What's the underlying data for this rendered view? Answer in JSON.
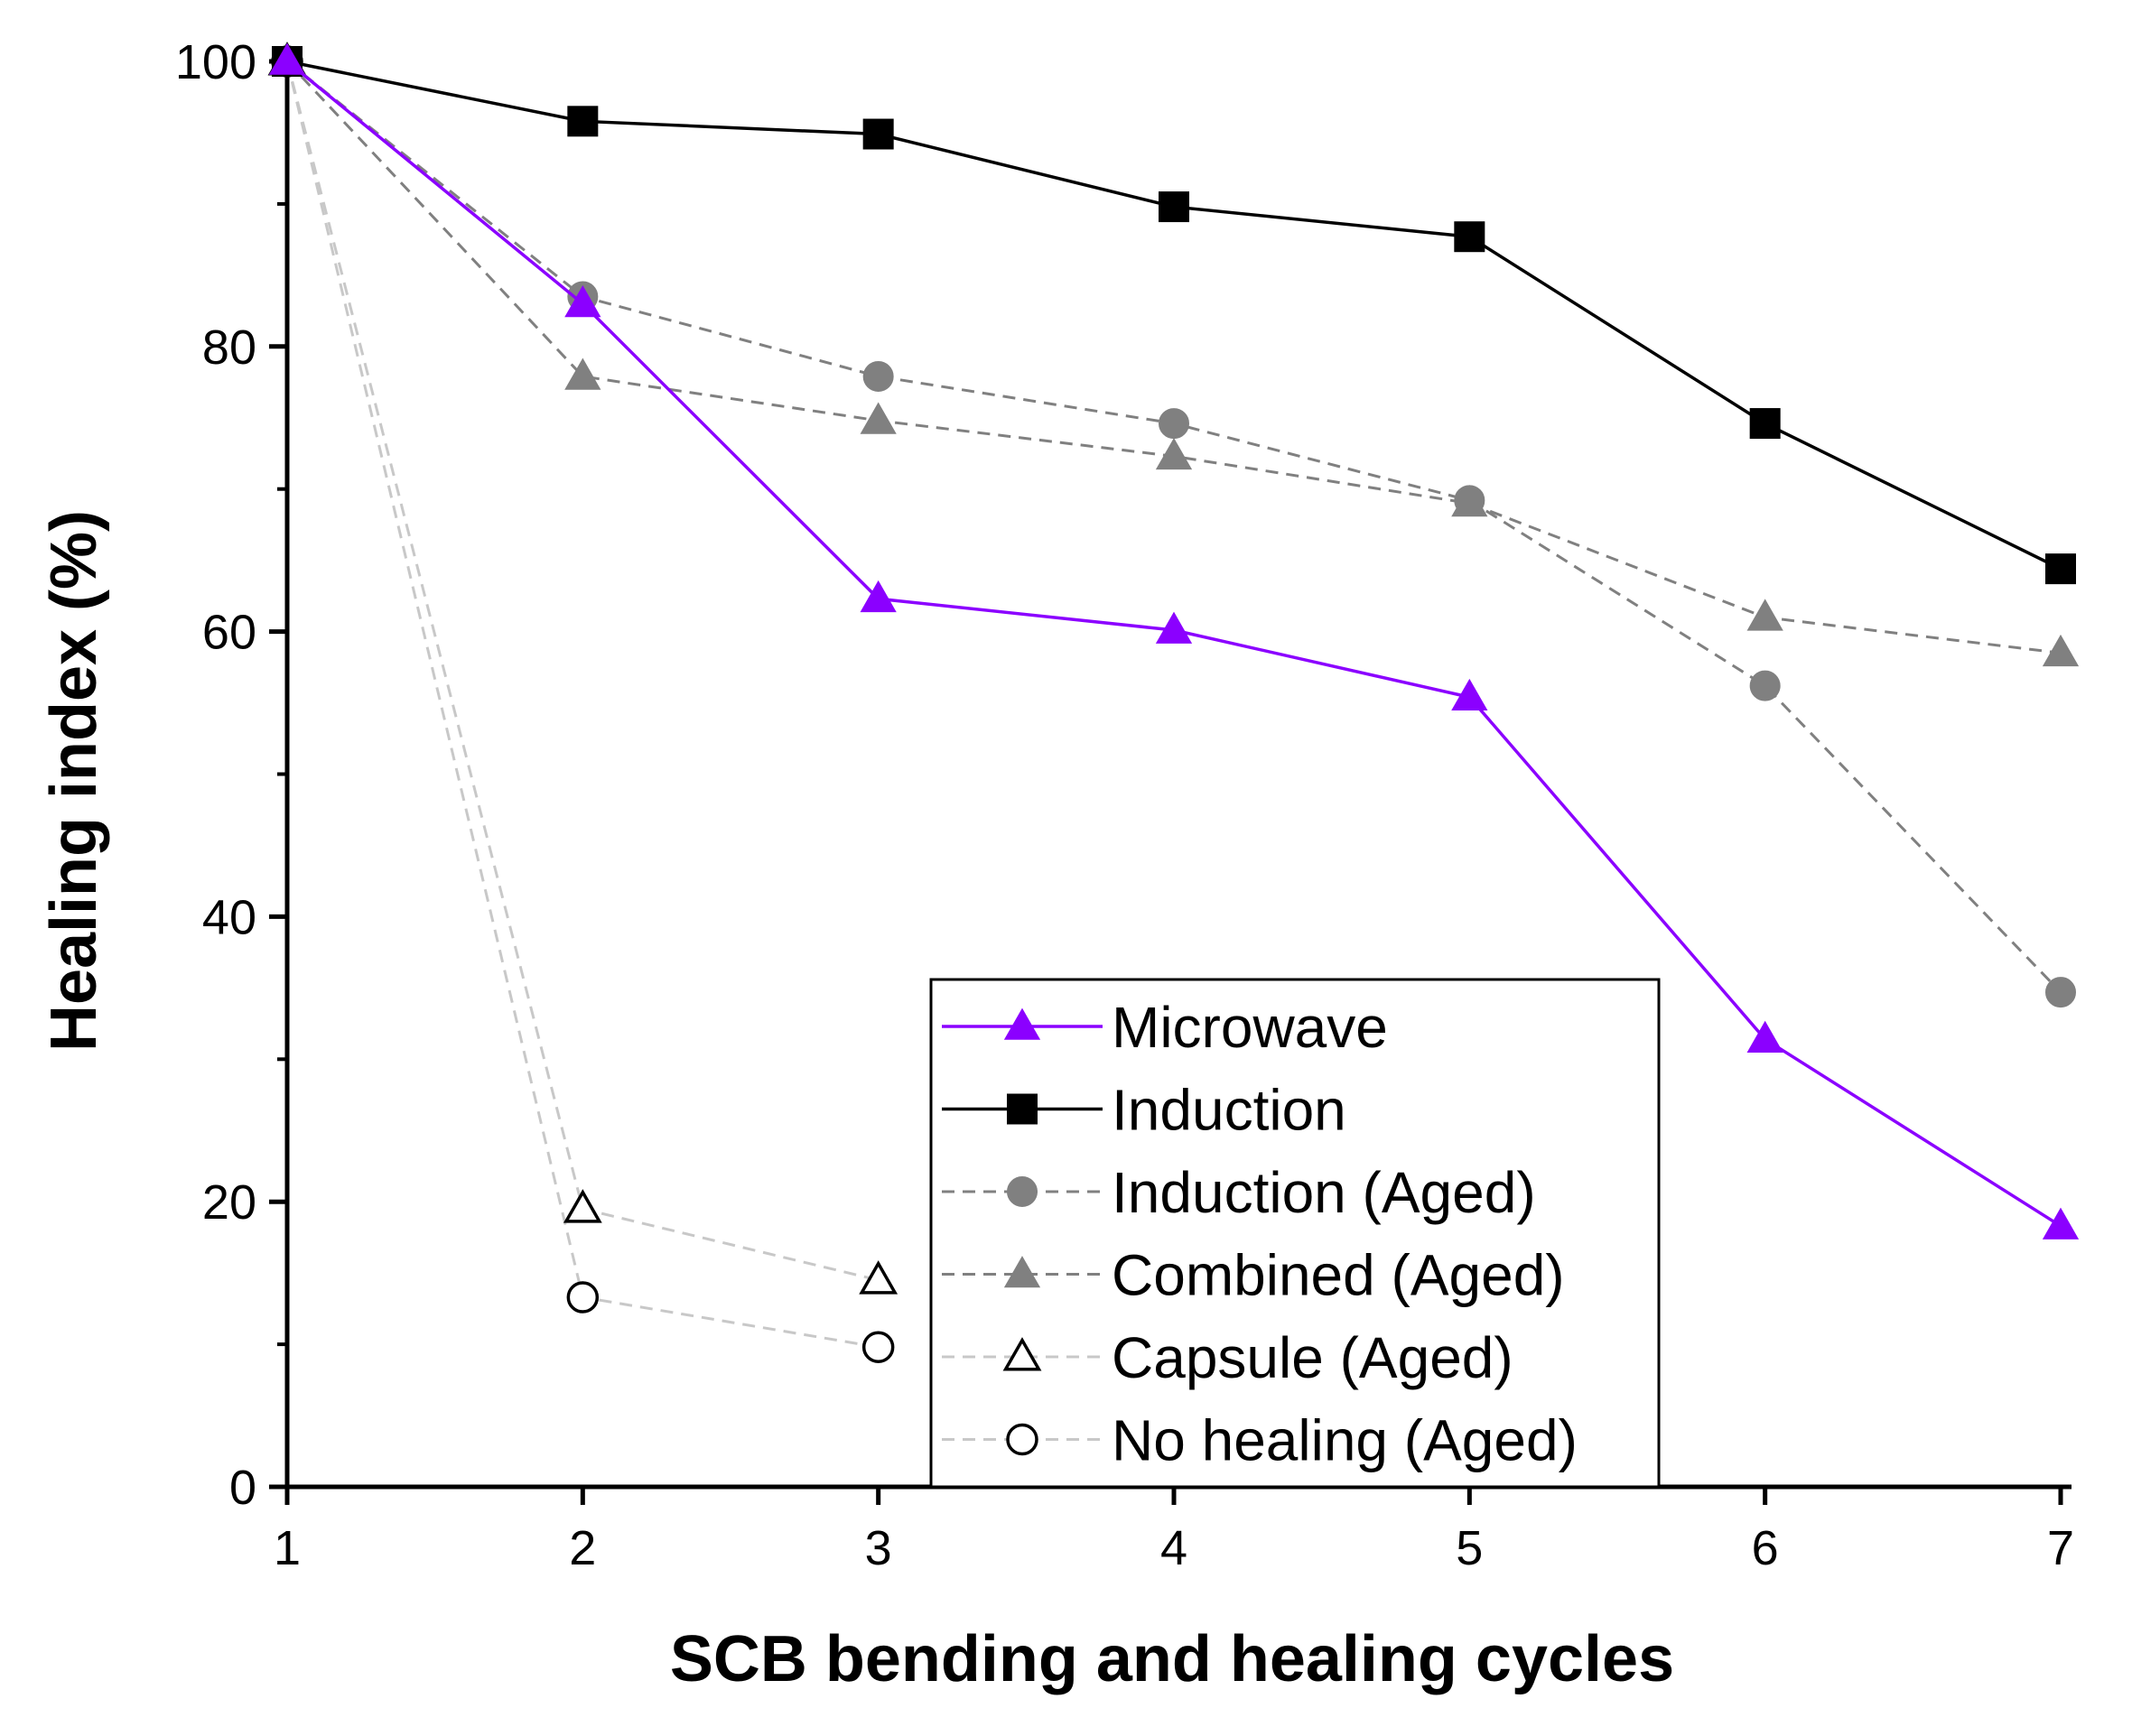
{
  "chart_data": {
    "type": "line",
    "xlabel": "SCB bending and healing cycles",
    "ylabel": "Healing index (%)",
    "xlim": [
      1,
      7
    ],
    "ylim": [
      0,
      100
    ],
    "xticks": [
      1,
      2,
      3,
      4,
      5,
      6,
      7
    ],
    "yticks": [
      0,
      20,
      40,
      60,
      80,
      100
    ],
    "legend_position": "bottom-right",
    "series": [
      {
        "name": "Microwave",
        "color": "#8B00FF",
        "marker": "triangle",
        "filled": true,
        "dashed": false,
        "x": [
          1,
          2,
          3,
          4,
          5,
          6,
          7
        ],
        "values": [
          100,
          83,
          62.3,
          60.1,
          55.4,
          31.4,
          18.3
        ]
      },
      {
        "name": "Induction",
        "color": "#000000",
        "marker": "square",
        "filled": true,
        "dashed": false,
        "x": [
          1,
          2,
          3,
          4,
          5,
          6,
          7
        ],
        "values": [
          100,
          95.8,
          94.9,
          89.8,
          87.7,
          74.6,
          64.4
        ]
      },
      {
        "name": "Induction (Aged)",
        "color": "#808080",
        "marker": "circle",
        "filled": true,
        "dashed": true,
        "x": [
          1,
          2,
          3,
          4,
          5,
          6,
          7
        ],
        "values": [
          100,
          83.5,
          77.9,
          74.6,
          69.2,
          56.2,
          34.7
        ]
      },
      {
        "name": "Combined (Aged)",
        "color": "#808080",
        "marker": "triangle",
        "filled": true,
        "dashed": true,
        "x": [
          1,
          2,
          3,
          4,
          5,
          6,
          7
        ],
        "values": [
          100,
          77.9,
          74.8,
          72.3,
          69,
          61,
          58.5
        ]
      },
      {
        "name": "Capsule (Aged)",
        "color": "#c8c8c8",
        "marker": "triangle",
        "filled": false,
        "dashed": true,
        "x": [
          1,
          2,
          3
        ],
        "values": [
          100,
          19.5,
          14.5
        ]
      },
      {
        "name": "No healing (Aged)",
        "color": "#c8c8c8",
        "marker": "circle",
        "filled": false,
        "dashed": true,
        "x": [
          1,
          2,
          3
        ],
        "values": [
          100,
          13.3,
          9.8
        ]
      }
    ]
  }
}
